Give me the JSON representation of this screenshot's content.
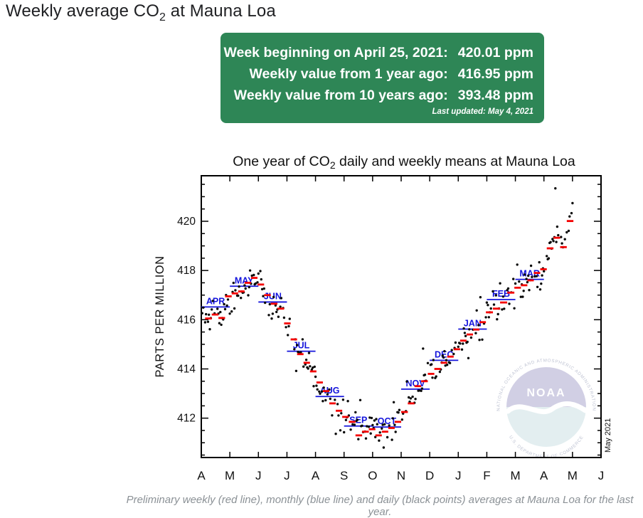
{
  "page": {
    "title_prefix": "Weekly average CO",
    "title_sub": "2",
    "title_suffix": " at Mauna Loa"
  },
  "info_box": {
    "bg_color": "#2e8656",
    "rows": [
      {
        "label": "Week beginning on April 25, 2021:",
        "value": "420.01 ppm"
      },
      {
        "label": "Weekly value from 1 year ago:",
        "value": "416.95 ppm"
      },
      {
        "label": "Weekly value from 10 years ago:",
        "value": "393.48 ppm"
      }
    ],
    "last_updated": "Last updated: May 4, 2021"
  },
  "caption": "Preliminary weekly (red line), monthly (blue line) and daily (black points) averages at Mauna Loa for the last year.",
  "chart_data": {
    "type": "scatter",
    "title_parts": [
      "One year of CO",
      "2",
      " daily and weekly means at Mauna Loa"
    ],
    "ylabel": "PARTS PER MILLION",
    "date_stamp": "May 2021",
    "x_tick_labels": [
      "A",
      "M",
      "J",
      "J",
      "A",
      "S",
      "O",
      "N",
      "D",
      "J",
      "F",
      "M",
      "A",
      "M",
      "J"
    ],
    "x_domain_months": [
      "2020-04-01",
      "2021-06-01"
    ],
    "ylim": [
      410.4,
      421.85
    ],
    "y_major_ticks": [
      412,
      414,
      416,
      418,
      420
    ],
    "y_minor_step": 0.5,
    "grid": false,
    "legend": "none (series identified in caption below chart)",
    "colors": {
      "daily": "#0a0a0a",
      "weekly": "#f40000",
      "monthly": "#1414dc",
      "month_label": "#1414dc",
      "frame": "#000000"
    },
    "monthly_means": [
      {
        "label": "APR",
        "start": "2020-04-01",
        "value": 416.52
      },
      {
        "label": "MAY",
        "start": "2020-05-01",
        "value": 417.36
      },
      {
        "label": "JUN",
        "start": "2020-06-01",
        "value": 416.72
      },
      {
        "label": "JUL",
        "start": "2020-07-01",
        "value": 414.72
      },
      {
        "label": "AUG",
        "start": "2020-08-01",
        "value": 412.88
      },
      {
        "label": "SEP",
        "start": "2020-09-01",
        "value": 411.68
      },
      {
        "label": "OCT",
        "start": "2020-10-01",
        "value": 411.64
      },
      {
        "label": "NOV",
        "start": "2020-11-01",
        "value": 413.18
      },
      {
        "label": "DEC",
        "start": "2020-12-01",
        "value": 414.35
      },
      {
        "label": "JAN",
        "start": "2021-01-01",
        "value": 415.62
      },
      {
        "label": "FEB",
        "start": "2021-02-01",
        "value": 416.82
      },
      {
        "label": "MAR",
        "start": "2021-03-01",
        "value": 417.64
      }
    ],
    "weekly_means": [
      {
        "week_start": "2020-04-05",
        "value": 416.05
      },
      {
        "week_start": "2020-04-12",
        "value": 416.21
      },
      {
        "week_start": "2020-04-19",
        "value": 416.07
      },
      {
        "week_start": "2020-04-26",
        "value": 416.95
      },
      {
        "week_start": "2020-05-03",
        "value": 417.07
      },
      {
        "week_start": "2020-05-10",
        "value": 417.15
      },
      {
        "week_start": "2020-05-17",
        "value": 417.5
      },
      {
        "week_start": "2020-05-24",
        "value": 417.7
      },
      {
        "week_start": "2020-05-31",
        "value": 417.43
      },
      {
        "week_start": "2020-06-07",
        "value": 417.0
      },
      {
        "week_start": "2020-06-14",
        "value": 416.65
      },
      {
        "week_start": "2020-06-21",
        "value": 416.45
      },
      {
        "week_start": "2020-06-28",
        "value": 415.85
      },
      {
        "week_start": "2020-07-05",
        "value": 415.2
      },
      {
        "week_start": "2020-07-12",
        "value": 414.6
      },
      {
        "week_start": "2020-07-19",
        "value": 414.25
      },
      {
        "week_start": "2020-07-26",
        "value": 413.9
      },
      {
        "week_start": "2020-08-02",
        "value": 413.45
      },
      {
        "week_start": "2020-08-09",
        "value": 413.1
      },
      {
        "week_start": "2020-08-16",
        "value": 412.6
      },
      {
        "week_start": "2020-08-23",
        "value": 412.3
      },
      {
        "week_start": "2020-08-30",
        "value": 412.05
      },
      {
        "week_start": "2020-09-06",
        "value": 411.85
      },
      {
        "week_start": "2020-09-13",
        "value": 411.3
      },
      {
        "week_start": "2020-09-20",
        "value": 411.45
      },
      {
        "week_start": "2020-09-27",
        "value": 411.55
      },
      {
        "week_start": "2020-10-04",
        "value": 411.3
      },
      {
        "week_start": "2020-10-11",
        "value": 411.45
      },
      {
        "week_start": "2020-10-18",
        "value": 411.6
      },
      {
        "week_start": "2020-10-25",
        "value": 411.85
      },
      {
        "week_start": "2020-11-01",
        "value": 412.25
      },
      {
        "week_start": "2020-11-08",
        "value": 412.6
      },
      {
        "week_start": "2020-11-15",
        "value": 413.3
      },
      {
        "week_start": "2020-11-22",
        "value": 413.5
      },
      {
        "week_start": "2020-11-29",
        "value": 413.8
      },
      {
        "week_start": "2020-12-06",
        "value": 414.0
      },
      {
        "week_start": "2020-12-13",
        "value": 414.25
      },
      {
        "week_start": "2020-12-20",
        "value": 414.5
      },
      {
        "week_start": "2020-12-27",
        "value": 414.8
      },
      {
        "week_start": "2021-01-03",
        "value": 415.15
      },
      {
        "week_start": "2021-01-10",
        "value": 415.4
      },
      {
        "week_start": "2021-01-17",
        "value": 415.6
      },
      {
        "week_start": "2021-01-24",
        "value": 415.9
      },
      {
        "week_start": "2021-01-31",
        "value": 416.3
      },
      {
        "week_start": "2021-02-07",
        "value": 416.45
      },
      {
        "week_start": "2021-02-14",
        "value": 416.7
      },
      {
        "week_start": "2021-02-21",
        "value": 417.1
      },
      {
        "week_start": "2021-02-28",
        "value": 417.3
      },
      {
        "week_start": "2021-03-07",
        "value": 417.4
      },
      {
        "week_start": "2021-03-14",
        "value": 417.6
      },
      {
        "week_start": "2021-03-21",
        "value": 417.9
      },
      {
        "week_start": "2021-03-28",
        "value": 418.05
      },
      {
        "week_start": "2021-04-04",
        "value": 418.9
      },
      {
        "week_start": "2021-04-11",
        "value": 419.33
      },
      {
        "week_start": "2021-04-18",
        "value": 418.95
      },
      {
        "week_start": "2021-04-25",
        "value": 420.01
      }
    ],
    "daily_points": {
      "description": "Daily means (black points) scatter around the weekly means; rendered as weekly-interpolated values plus seeded gaussian noise.",
      "start": "2020-04-02",
      "end": "2021-05-01",
      "seed": 20210504,
      "sigma_ppm": 0.33,
      "skip_prob": 0.28,
      "outlier_prob": 0.05,
      "outlier_scale": 2.4,
      "value_min": 410.78,
      "value_max": 421.55
    },
    "watermark": {
      "org": "NOAA",
      "ring_top": "NATIONAL OCEANIC AND ATMOSPHERIC ADMINISTRATION",
      "ring_bottom": "U.S. DEPARTMENT OF COMMERCE",
      "top_color": "#a5a1cb",
      "bottom_color": "#c9dfe3",
      "opacity": 0.5
    }
  }
}
